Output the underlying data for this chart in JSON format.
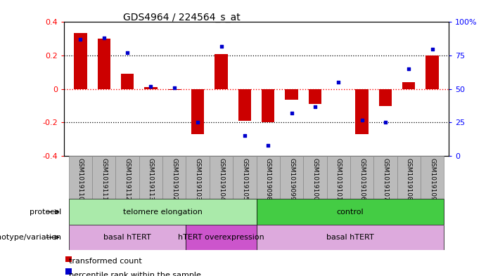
{
  "title": "GDS4964 / 224564_s_at",
  "samples": [
    "GSM1019110",
    "GSM1019111",
    "GSM1019112",
    "GSM1019113",
    "GSM1019102",
    "GSM1019103",
    "GSM1019104",
    "GSM1019105",
    "GSM1019098",
    "GSM1019099",
    "GSM1019100",
    "GSM1019101",
    "GSM1019106",
    "GSM1019107",
    "GSM1019108",
    "GSM1019109"
  ],
  "bar_values": [
    0.335,
    0.3,
    0.09,
    0.01,
    -0.005,
    -0.27,
    0.21,
    -0.19,
    -0.2,
    -0.065,
    -0.09,
    0.0,
    -0.27,
    -0.1,
    0.04,
    0.2
  ],
  "scatter_values": [
    87,
    88,
    77,
    52,
    51,
    25,
    82,
    15,
    8,
    32,
    37,
    55,
    27,
    25,
    65,
    80
  ],
  "ylim_left": [
    -0.4,
    0.4
  ],
  "ylim_right": [
    0,
    100
  ],
  "bar_color": "#cc0000",
  "scatter_color": "#0000cc",
  "dotted_black_values": [
    0.2,
    -0.2
  ],
  "dotted_red_value": 0.0,
  "right_yticks": [
    0,
    25,
    50,
    75,
    100
  ],
  "right_yticklabels": [
    "0",
    "25",
    "50",
    "75",
    "100%"
  ],
  "left_yticks": [
    -0.4,
    -0.2,
    0.0,
    0.2,
    0.4
  ],
  "left_yticklabels": [
    "-0.4",
    "-0.2",
    "0",
    "0.2",
    "0.4"
  ],
  "protocol_groups": [
    {
      "label": "telomere elongation",
      "start": 0,
      "end": 8,
      "color": "#aaeaaa"
    },
    {
      "label": "control",
      "start": 8,
      "end": 16,
      "color": "#44cc44"
    }
  ],
  "genotype_groups": [
    {
      "label": "basal hTERT",
      "start": 0,
      "end": 5,
      "color": "#ddaadd"
    },
    {
      "label": "hTERT overexpression",
      "start": 5,
      "end": 8,
      "color": "#cc55cc"
    },
    {
      "label": "basal hTERT",
      "start": 8,
      "end": 16,
      "color": "#ddaadd"
    }
  ],
  "protocol_label": "protocol",
  "genotype_label": "genotype/variation",
  "legend_items": [
    {
      "color": "#cc0000",
      "label": "transformed count"
    },
    {
      "color": "#0000cc",
      "label": "percentile rank within the sample"
    }
  ],
  "background_color": "#ffffff",
  "xlabel_bg": "#bbbbbb",
  "bar_width": 0.55
}
